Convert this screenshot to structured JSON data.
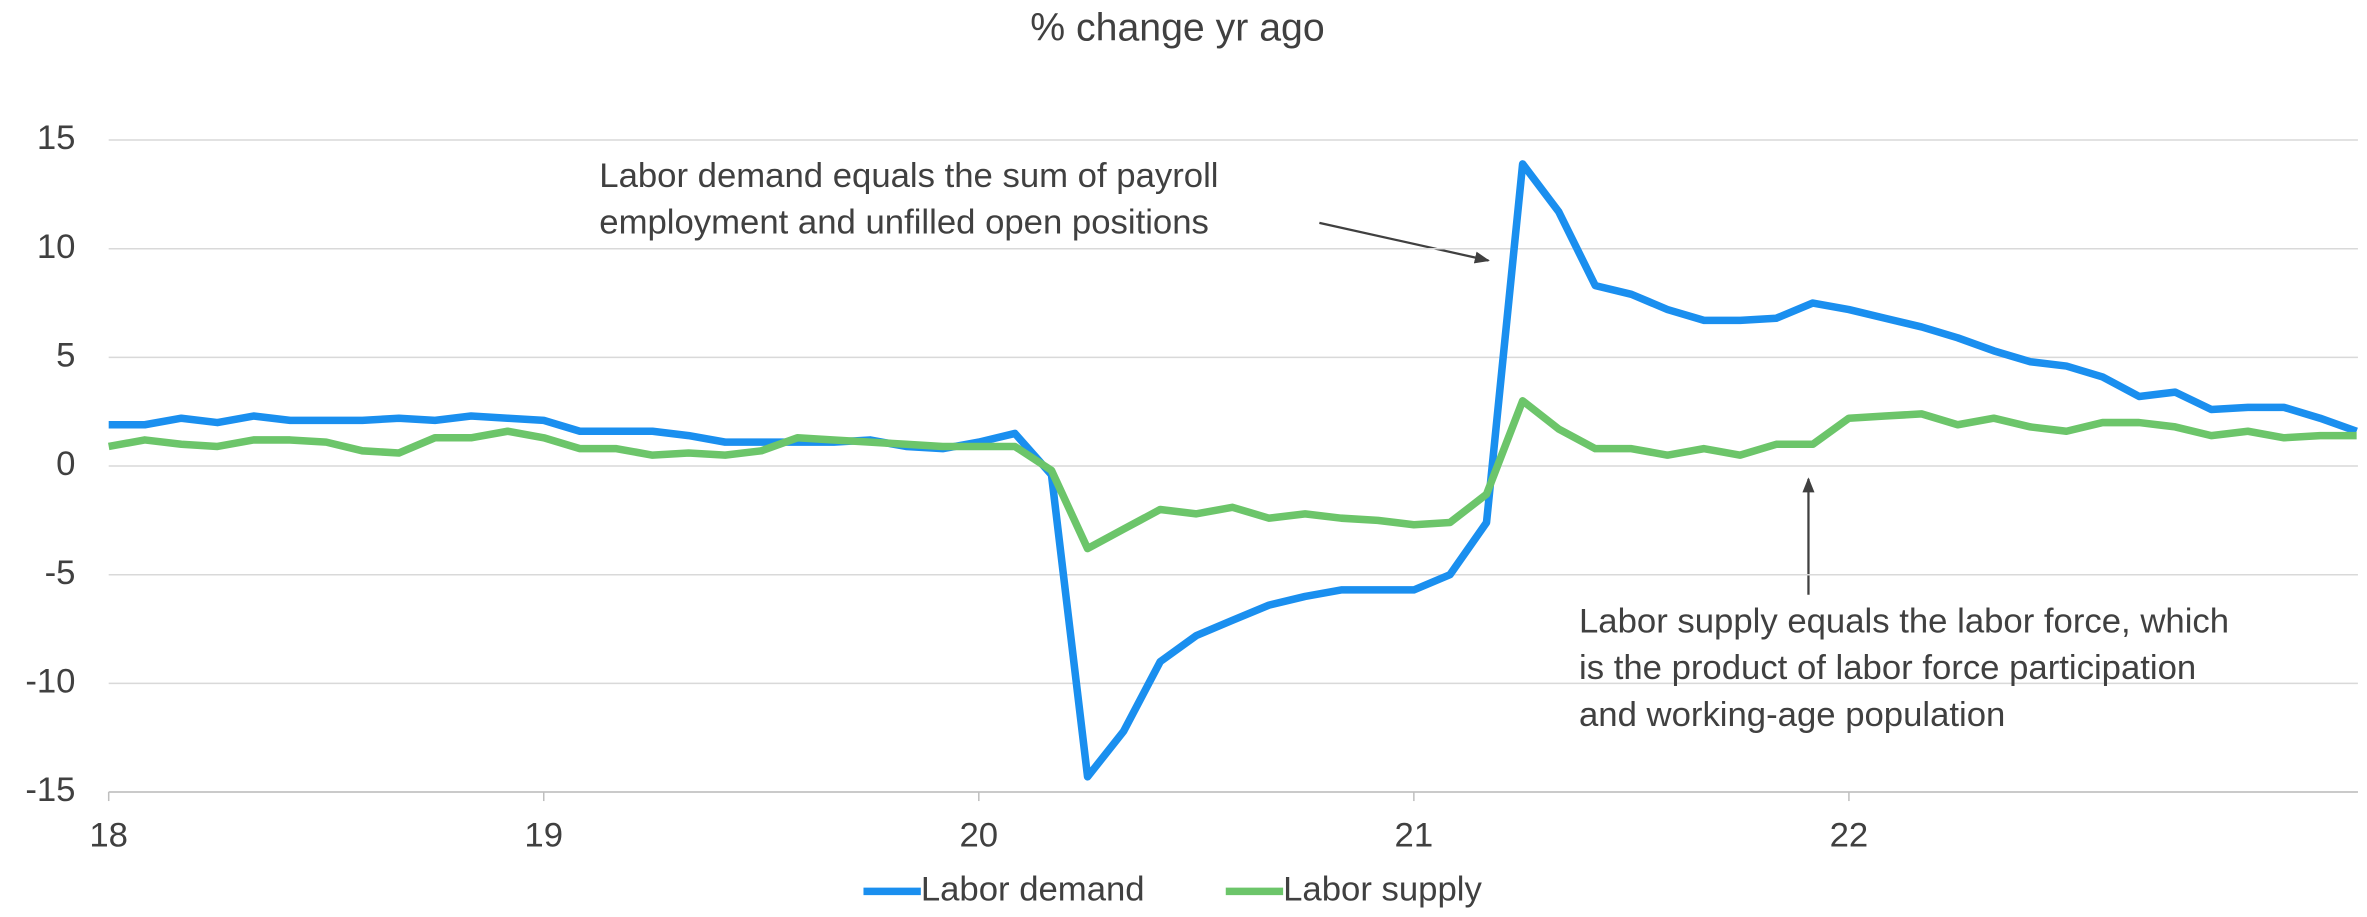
{
  "chart_data": {
    "type": "line",
    "title": "% change yr ago",
    "x": [
      18,
      18.083,
      18.167,
      18.25,
      18.333,
      18.417,
      18.5,
      18.583,
      18.667,
      18.75,
      18.833,
      18.917,
      19,
      19.083,
      19.167,
      19.25,
      19.333,
      19.417,
      19.5,
      19.583,
      19.667,
      19.75,
      19.833,
      19.917,
      20,
      20.083,
      20.167,
      20.25,
      20.333,
      20.417,
      20.5,
      20.583,
      20.667,
      20.75,
      20.833,
      20.917,
      21,
      21.083,
      21.167,
      21.25,
      21.333,
      21.417,
      21.5,
      21.583,
      21.667,
      21.75,
      21.833,
      21.917,
      22,
      22.083,
      22.167,
      22.25,
      22.333,
      22.417,
      22.5,
      22.583,
      22.667,
      22.75,
      22.833,
      22.917,
      23,
      23.083,
      23.167
    ],
    "series": [
      {
        "name": "Labor demand",
        "color": "#1a8fef",
        "values": [
          1.9,
          1.9,
          2.2,
          2.0,
          2.3,
          2.1,
          2.1,
          2.1,
          2.2,
          2.1,
          2.3,
          2.2,
          2.1,
          1.6,
          1.6,
          1.6,
          1.4,
          1.1,
          1.1,
          1.1,
          1.1,
          1.2,
          0.9,
          0.8,
          1.1,
          1.5,
          -0.4,
          -14.3,
          -12.2,
          -9.0,
          -7.8,
          -7.1,
          -6.4,
          -6.0,
          -5.7,
          -5.7,
          -5.7,
          -5.0,
          -2.6,
          13.9,
          11.7,
          8.3,
          7.9,
          7.2,
          6.7,
          6.7,
          6.8,
          7.5,
          7.2,
          6.8,
          6.4,
          5.9,
          5.3,
          4.8,
          4.6,
          4.1,
          3.2,
          3.4,
          2.6,
          2.7,
          2.7,
          2.2,
          1.6
        ]
      },
      {
        "name": "Labor supply",
        "color": "#6cc56a",
        "values": [
          0.9,
          1.2,
          1.0,
          0.9,
          1.2,
          1.2,
          1.1,
          0.7,
          0.6,
          1.3,
          1.3,
          1.6,
          1.3,
          0.8,
          0.8,
          0.5,
          0.6,
          0.5,
          0.7,
          1.3,
          1.2,
          1.1,
          1.0,
          0.9,
          0.9,
          0.9,
          -0.2,
          -3.8,
          -2.9,
          -2.0,
          -2.2,
          -1.9,
          -2.4,
          -2.2,
          -2.4,
          -2.5,
          -2.7,
          -2.6,
          -1.3,
          3.0,
          1.7,
          0.8,
          0.8,
          0.5,
          0.8,
          0.5,
          1.0,
          1.0,
          2.2,
          2.3,
          2.4,
          1.9,
          2.2,
          1.8,
          1.6,
          2.0,
          2.0,
          1.8,
          1.4,
          1.6,
          1.3,
          1.4,
          1.4
        ]
      }
    ],
    "xlim": [
      18,
      23.17
    ],
    "xticks": [
      18,
      19,
      20,
      21,
      22
    ],
    "ylim": [
      -15,
      15
    ],
    "yticks": [
      -15,
      -10,
      -5,
      0,
      5,
      10,
      15
    ],
    "grid": true,
    "legend": "bottom",
    "annotations": [
      [
        "Labor demand equals the sum of payroll",
        "employment and unfilled open positions"
      ],
      [
        "Labor supply equals the labor force, which",
        "is the product of labor force participation",
        "and working-age population"
      ]
    ]
  }
}
